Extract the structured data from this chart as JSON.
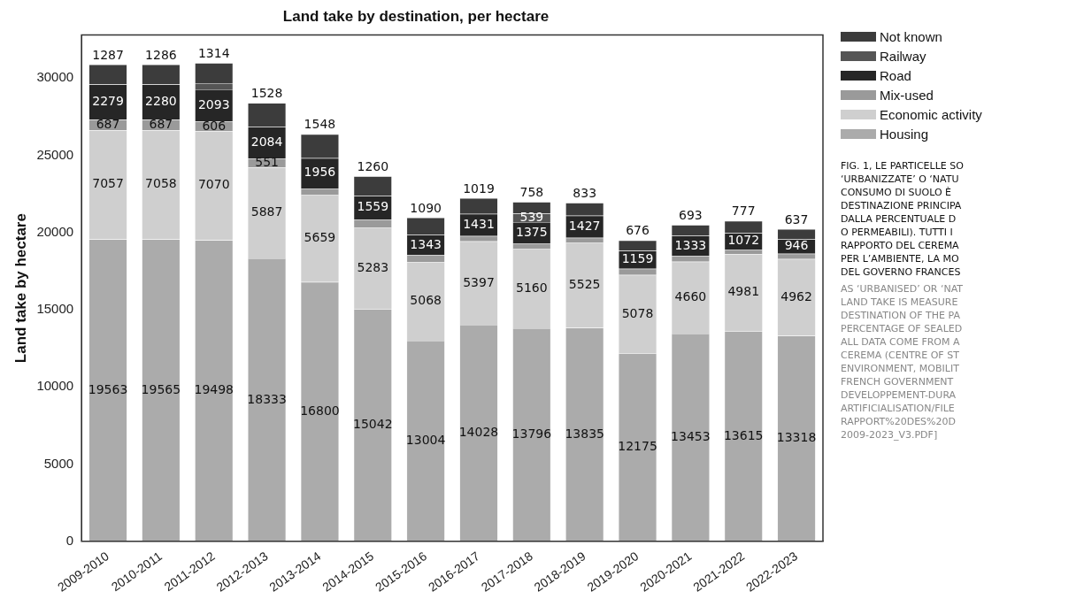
{
  "chart_data": {
    "type": "bar",
    "title": "Land take by destination, per hectare",
    "ylabel": "Land take by hectare",
    "categories": [
      "2009-2010",
      "2010-2011",
      "2011-2012",
      "2012-2013",
      "2013-2014",
      "2014-2015",
      "2015-2016",
      "2016-2017",
      "2017-2018",
      "2018-2019",
      "2019-2020",
      "2020-2021",
      "2021-2022",
      "2022-2023"
    ],
    "stacked": true,
    "ylim": [
      0,
      32800
    ],
    "yticks": [
      0,
      5000,
      10000,
      15000,
      20000,
      25000,
      30000
    ],
    "grid": false,
    "legend": "top right",
    "series": [
      {
        "name": "Housing",
        "color": "#ababab",
        "values": [
          19563,
          19565,
          19498,
          18333,
          16800,
          15042,
          13004,
          14028,
          13796,
          13835,
          12175,
          13453,
          13615,
          13318
        ],
        "value_labels": [
          "19563",
          "19565",
          "19498",
          "18333",
          "16800",
          "15042",
          "13004",
          "14028",
          "13796",
          "13835",
          "12175",
          "13453",
          "13615",
          "13318"
        ]
      },
      {
        "name": "Economic activity",
        "color": "#cfcfcf",
        "values": [
          7057,
          7058,
          7070,
          5887,
          5659,
          5283,
          5068,
          5397,
          5160,
          5525,
          5078,
          4660,
          4981,
          4962
        ],
        "value_labels": [
          "7057",
          "7058",
          "7070",
          "5887",
          "5659",
          "5283",
          "5068",
          "5397",
          "5160",
          "5525",
          "5078",
          "4660",
          "4981",
          "4962"
        ]
      },
      {
        "name": "Mix-used",
        "color": "#9a9a9a",
        "values": [
          687,
          687,
          606,
          551,
          400,
          500,
          450,
          350,
          350,
          300,
          400,
          350,
          300,
          350
        ],
        "value_labels": [
          "687",
          "687",
          "606",
          "551",
          null,
          null,
          null,
          null,
          null,
          null,
          null,
          null,
          null,
          null
        ]
      },
      {
        "name": "Road",
        "color": "#262626",
        "values": [
          2279,
          2280,
          2093,
          2084,
          1956,
          1559,
          1343,
          1431,
          1375,
          1427,
          1159,
          1333,
          1072,
          946
        ],
        "value_labels": [
          "2279",
          "2280",
          "2093",
          "2084",
          "1956",
          "1559",
          "1343",
          "1431",
          "1375",
          "1427",
          "1159",
          "1333",
          "1072",
          "946"
        ]
      },
      {
        "name": "Railway",
        "color": "#555555",
        "values": [
          0,
          0,
          400,
          0,
          0,
          0,
          0,
          0,
          539,
          0,
          0,
          0,
          0,
          0
        ],
        "value_labels": [
          null,
          null,
          null,
          null,
          null,
          null,
          null,
          null,
          "539",
          null,
          null,
          null,
          null,
          null
        ]
      },
      {
        "name": "Not known",
        "color": "#3c3c3c",
        "values": [
          1287,
          1286,
          1314,
          1528,
          1548,
          1260,
          1090,
          1019,
          758,
          833,
          676,
          693,
          777,
          637
        ],
        "value_labels": [
          "1287",
          "1286",
          "1314",
          "1528",
          "1548",
          "1260",
          "1090",
          "1019",
          "758",
          "833",
          "676",
          "693",
          "777",
          "637"
        ]
      }
    ],
    "annotations": [
      "FIG. 1, LE PARTICELLE SO\n‘URBANIZZATE’ O ‘NATU\nCONSUMO DI SUOLO È\nDESTINAZIONE PRINCIPA\nDALLA PERCENTUALE D\nO PERMEABILI). TUTTI I\nRAPPORTO DEL CEREMA\nPER L’AMBIENTE, LA MO\nDEL GOVERNO FRANCES",
      "AS ‘URBANISED’ OR ‘NAT\nLAND TAKE IS MEASURE\nDESTINATION OF THE PA\nPERCENTAGE OF SEALED\nALL DATA COME FROM A\nCEREMA (CENTRE OF ST\nENVIRONMENT, MOBILIT\nFRENCH GOVERNMENT\nDEVELOPPEMENT-DURA\nARTIFICIALISATION/FILE\nRAPPORT%20DES%20D\n2009-2023_V3.PDF]"
    ]
  }
}
